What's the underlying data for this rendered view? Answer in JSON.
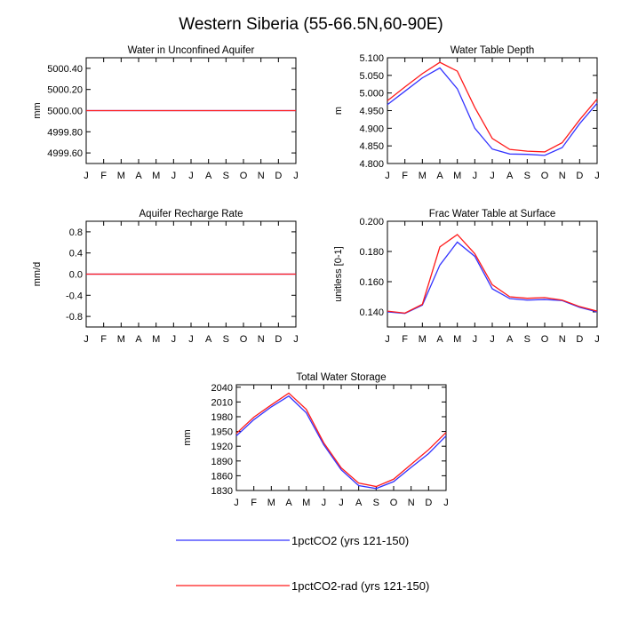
{
  "title": "Western Siberia (55-66.5N,60-90E)",
  "colors": {
    "blue": "#3333ff",
    "red": "#ff1a1a"
  },
  "legend": [
    {
      "label": "1pctCO2 (yrs 121-150)",
      "color": "#3333ff"
    },
    {
      "label": "1pctCO2-rad (yrs 121-150)",
      "color": "#ff1a1a"
    }
  ],
  "chart_data": [
    {
      "type": "line",
      "title": "Water in Unconfined Aquifer",
      "ylabel": "mm",
      "x": [
        "J",
        "F",
        "M",
        "A",
        "M",
        "J",
        "J",
        "A",
        "S",
        "O",
        "N",
        "D",
        "J"
      ],
      "ylim": [
        4999.5,
        5000.5
      ],
      "yticks": [
        4999.6,
        4999.8,
        5000.0,
        5000.2,
        5000.4
      ],
      "ytick_labels": [
        "4999.60",
        "4999.80",
        "5000.00",
        "5000.20",
        "5000.40"
      ],
      "series": [
        {
          "name": "1pctCO2 (yrs 121-150)",
          "values": [
            5000,
            5000,
            5000,
            5000,
            5000,
            5000,
            5000,
            5000,
            5000,
            5000,
            5000,
            5000,
            5000
          ]
        },
        {
          "name": "1pctCO2-rad (yrs 121-150)",
          "values": [
            5000,
            5000,
            5000,
            5000,
            5000,
            5000,
            5000,
            5000,
            5000,
            5000,
            5000,
            5000,
            5000
          ]
        }
      ]
    },
    {
      "type": "line",
      "title": "Water Table Depth",
      "ylabel": "m",
      "x": [
        "J",
        "F",
        "M",
        "A",
        "M",
        "J",
        "J",
        "A",
        "S",
        "O",
        "N",
        "D",
        "J"
      ],
      "ylim": [
        4.8,
        5.1
      ],
      "yticks": [
        4.8,
        4.85,
        4.9,
        4.95,
        5.0,
        5.05,
        5.1
      ],
      "ytick_labels": [
        "4.800",
        "4.850",
        "4.900",
        "4.950",
        "5.000",
        "5.050",
        "5.100"
      ],
      "series": [
        {
          "name": "1pctCO2 (yrs 121-150)",
          "values": [
            4.967,
            5.005,
            5.043,
            5.071,
            5.012,
            4.9,
            4.841,
            4.827,
            4.826,
            4.823,
            4.845,
            4.913,
            4.971
          ]
        },
        {
          "name": "1pctCO2-rad (yrs 121-150)",
          "values": [
            4.978,
            5.017,
            5.055,
            5.087,
            5.062,
            4.959,
            4.871,
            4.84,
            4.835,
            4.833,
            4.859,
            4.924,
            4.983
          ]
        }
      ]
    },
    {
      "type": "line",
      "title": "Aquifer Recharge Rate",
      "ylabel": "mm/d",
      "x": [
        "J",
        "F",
        "M",
        "A",
        "M",
        "J",
        "J",
        "A",
        "S",
        "O",
        "N",
        "D",
        "J"
      ],
      "ylim": [
        -1.0,
        1.0
      ],
      "yticks": [
        -0.8,
        -0.4,
        0.0,
        0.4,
        0.8
      ],
      "ytick_labels": [
        "-0.8",
        "-0.4",
        "0.0",
        "0.4",
        "0.8"
      ],
      "series": [
        {
          "name": "1pctCO2 (yrs 121-150)",
          "values": [
            0,
            0,
            0,
            0,
            0,
            0,
            0,
            0,
            0,
            0,
            0,
            0,
            0
          ]
        },
        {
          "name": "1pctCO2-rad (yrs 121-150)",
          "values": [
            0,
            0,
            0,
            0,
            0,
            0,
            0,
            0,
            0,
            0,
            0,
            0,
            0
          ]
        }
      ]
    },
    {
      "type": "line",
      "title": "Frac Water Table at Surface",
      "ylabel": "unitless [0-1]",
      "x": [
        "J",
        "F",
        "M",
        "A",
        "M",
        "J",
        "J",
        "A",
        "S",
        "O",
        "N",
        "D",
        "J"
      ],
      "ylim": [
        0.13,
        0.2
      ],
      "yticks": [
        0.14,
        0.16,
        0.18,
        0.2
      ],
      "ytick_labels": [
        "0.140",
        "0.160",
        "0.180",
        "0.200"
      ],
      "series": [
        {
          "name": "1pctCO2 (yrs 121-150)",
          "values": [
            0.14,
            0.139,
            0.1445,
            0.171,
            0.1862,
            0.1768,
            0.1553,
            0.1488,
            0.1478,
            0.1482,
            0.1475,
            0.143,
            0.14
          ]
        },
        {
          "name": "1pctCO2-rad (yrs 121-150)",
          "values": [
            0.1405,
            0.1392,
            0.145,
            0.183,
            0.1912,
            0.1785,
            0.158,
            0.15,
            0.149,
            0.1495,
            0.1478,
            0.1435,
            0.1405
          ]
        }
      ]
    },
    {
      "type": "line",
      "title": "Total Water Storage",
      "ylabel": "mm",
      "x": [
        "J",
        "F",
        "M",
        "A",
        "M",
        "J",
        "J",
        "A",
        "S",
        "O",
        "N",
        "D",
        "J"
      ],
      "ylim": [
        1830,
        2045
      ],
      "yticks": [
        1830,
        1860,
        1890,
        1920,
        1950,
        1980,
        2010,
        2040
      ],
      "ytick_labels": [
        "1830",
        "1860",
        "1890",
        "1920",
        "1950",
        "1980",
        "2010",
        "2040"
      ],
      "series": [
        {
          "name": "1pctCO2 (yrs 121-150)",
          "values": [
            1941,
            1974,
            2000,
            2022,
            1988,
            1923,
            1872,
            1840,
            1834,
            1848,
            1877,
            1905,
            1941
          ]
        },
        {
          "name": "1pctCO2-rad (yrs 121-150)",
          "values": [
            1946,
            1979,
            2004,
            2028,
            1995,
            1927,
            1876,
            1845,
            1838,
            1853,
            1883,
            1913,
            1948
          ]
        }
      ]
    }
  ]
}
